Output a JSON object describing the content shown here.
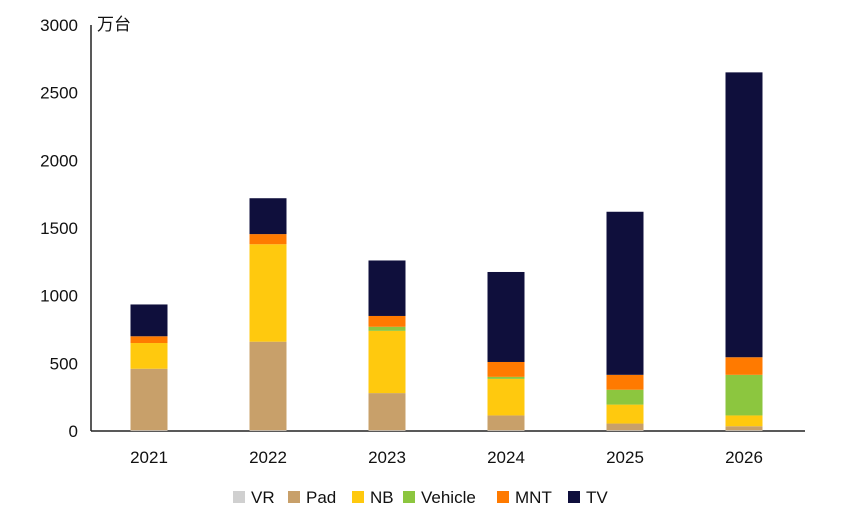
{
  "chart_data": {
    "type": "bar",
    "stacked": true,
    "title": "",
    "unit_label": "万台",
    "xlabel": "",
    "ylabel": "万台",
    "ylim": [
      0,
      3000
    ],
    "yticks": [
      0,
      500,
      1000,
      1500,
      2000,
      2500,
      3000
    ],
    "categories": [
      "2021",
      "2022",
      "2023",
      "2024",
      "2025",
      "2026"
    ],
    "legend_position": "bottom",
    "series": [
      {
        "name": "VR",
        "color": "#d0d0d0",
        "values": [
          5,
          5,
          5,
          5,
          5,
          5
        ]
      },
      {
        "name": "Pad",
        "color": "#c8a06a",
        "values": [
          455,
          655,
          275,
          110,
          50,
          30
        ]
      },
      {
        "name": "NB",
        "color": "#ffc90e",
        "values": [
          190,
          720,
          460,
          270,
          140,
          80
        ]
      },
      {
        "name": "Vehicle",
        "color": "#8cc63f",
        "values": [
          0,
          0,
          30,
          15,
          110,
          300
        ]
      },
      {
        "name": "MNT",
        "color": "#ff7a00",
        "values": [
          50,
          75,
          80,
          110,
          110,
          130
        ]
      },
      {
        "name": "TV",
        "color": "#0f0f3c",
        "values": [
          235,
          265,
          410,
          665,
          1205,
          2105
        ]
      }
    ]
  }
}
